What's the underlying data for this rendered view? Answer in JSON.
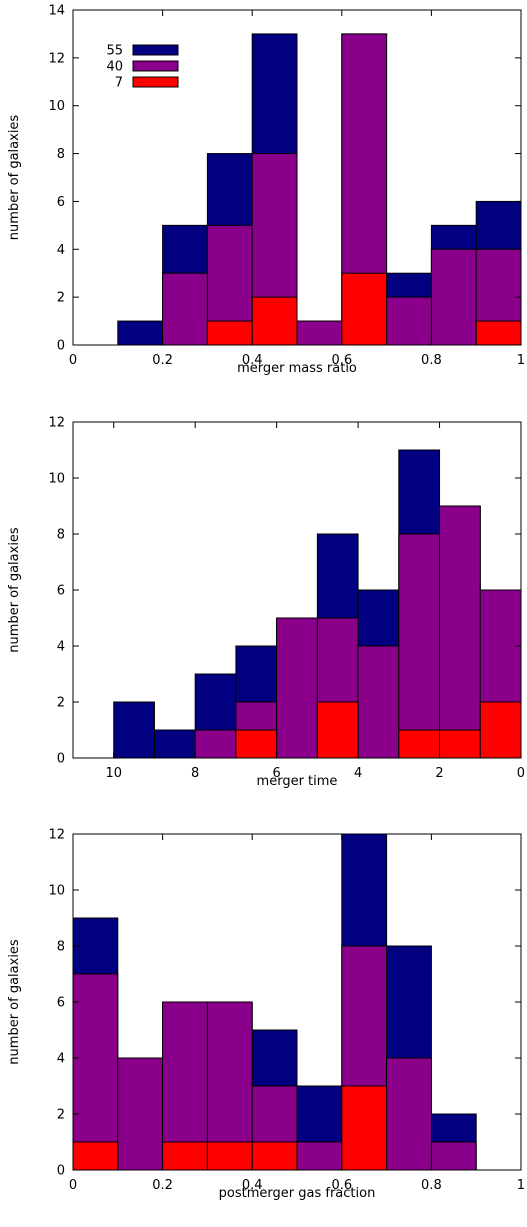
{
  "colors": {
    "c55": "#000080",
    "c40": "#8b008b",
    "c7": "#ff0000"
  },
  "legend": [
    {
      "label": "55",
      "color": "#000080"
    },
    {
      "label": "40",
      "color": "#8b008b"
    },
    {
      "label": "7",
      "color": "#ff0000"
    }
  ],
  "chart_data": [
    {
      "type": "bar",
      "xlabel": "merger mass ratio",
      "ylabel": "number of galaxies",
      "xlim": [
        0,
        1
      ],
      "ylim": [
        0,
        14
      ],
      "xticks": [
        0,
        0.2,
        0.4,
        0.6,
        0.8,
        1
      ],
      "xtick_labels": [
        "0",
        "0.2",
        "0.4",
        "0.6",
        "0.8",
        "1"
      ],
      "yticks": [
        0,
        2,
        4,
        6,
        8,
        10,
        12,
        14
      ],
      "ytick_labels": [
        "0",
        "2",
        "4",
        "6",
        "8",
        "10",
        "12",
        "14"
      ],
      "bin_edges": [
        0,
        0.1,
        0.2,
        0.3,
        0.4,
        0.5,
        0.6,
        0.7,
        0.8,
        0.9,
        1.0
      ],
      "series": [
        {
          "name": "55",
          "values": [
            0,
            1,
            5,
            8,
            13,
            1,
            13,
            3,
            5,
            6
          ]
        },
        {
          "name": "40",
          "values": [
            0,
            0,
            3,
            5,
            8,
            1,
            13,
            2,
            4,
            4
          ]
        },
        {
          "name": "7",
          "values": [
            0,
            0,
            0,
            1,
            2,
            0,
            3,
            0,
            0,
            1
          ]
        }
      ],
      "legend_position": "top-left"
    },
    {
      "type": "bar",
      "xlabel": "merger time",
      "ylabel": "number of galaxies",
      "xlim": [
        11,
        0
      ],
      "ylim": [
        0,
        12
      ],
      "xticks": [
        10,
        8,
        6,
        4,
        2,
        0
      ],
      "xtick_labels": [
        "10",
        "8",
        "6",
        "4",
        "2",
        "0"
      ],
      "yticks": [
        0,
        2,
        4,
        6,
        8,
        10,
        12
      ],
      "ytick_labels": [
        "0",
        "2",
        "4",
        "6",
        "8",
        "10",
        "12"
      ],
      "bin_edges": [
        10,
        9,
        8,
        7,
        6,
        5,
        4,
        3,
        2,
        1,
        0
      ],
      "series": [
        {
          "name": "55",
          "values": [
            2,
            1,
            3,
            4,
            5,
            8,
            6,
            11,
            9,
            6
          ]
        },
        {
          "name": "40",
          "values": [
            0,
            0,
            1,
            2,
            5,
            5,
            4,
            8,
            9,
            6
          ]
        },
        {
          "name": "7",
          "values": [
            0,
            0,
            0,
            1,
            0,
            2,
            0,
            1,
            1,
            2
          ]
        }
      ]
    },
    {
      "type": "bar",
      "xlabel": "postmerger gas fraction",
      "ylabel": "number of galaxies",
      "xlim": [
        0,
        1
      ],
      "ylim": [
        0,
        12
      ],
      "xticks": [
        0,
        0.2,
        0.4,
        0.6,
        0.8,
        1
      ],
      "xtick_labels": [
        "0",
        "0.2",
        "0.4",
        "0.6",
        "0.8",
        "1"
      ],
      "yticks": [
        0,
        2,
        4,
        6,
        8,
        10,
        12
      ],
      "ytick_labels": [
        "0",
        "2",
        "4",
        "6",
        "8",
        "10",
        "12"
      ],
      "bin_edges": [
        0,
        0.1,
        0.2,
        0.3,
        0.4,
        0.5,
        0.6,
        0.7,
        0.8,
        0.9,
        1.0
      ],
      "series": [
        {
          "name": "55",
          "values": [
            9,
            4,
            6,
            6,
            5,
            3,
            12,
            8,
            2,
            0
          ]
        },
        {
          "name": "40",
          "values": [
            7,
            4,
            6,
            6,
            3,
            1,
            8,
            4,
            1,
            0
          ]
        },
        {
          "name": "7",
          "values": [
            1,
            0,
            1,
            1,
            1,
            0,
            3,
            0,
            0,
            0
          ]
        }
      ]
    }
  ]
}
